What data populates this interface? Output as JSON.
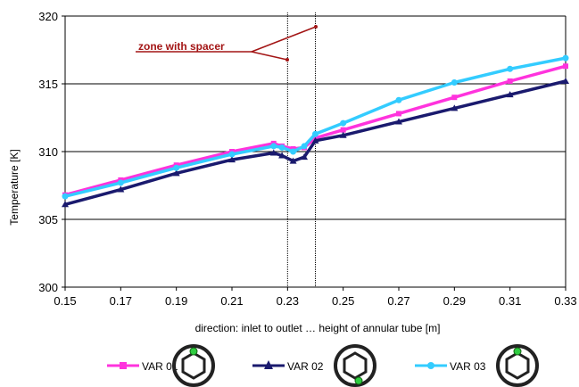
{
  "chart_data": {
    "type": "line",
    "title": "",
    "xlabel": "direction: inlet to outlet … height of annular tube [m]",
    "ylabel": "Temperature [K]",
    "xlim": [
      0.15,
      0.33
    ],
    "ylim": [
      300,
      320
    ],
    "x_ticks": [
      "0.15",
      "0.17",
      "0.19",
      "0.21",
      "0.23",
      "0.25",
      "0.27",
      "0.29",
      "0.31",
      "0.33"
    ],
    "y_ticks": [
      "300",
      "305",
      "310",
      "315",
      "320"
    ],
    "grid": "horizontal",
    "annotation": {
      "text": "zone with spacer",
      "color": "#a31515",
      "bounds_x": [
        0.23,
        0.24
      ]
    },
    "series": [
      {
        "name": "VAR 01",
        "color": "#ff33dd",
        "marker": "square",
        "x": [
          0.15,
          0.17,
          0.19,
          0.21,
          0.225,
          0.228,
          0.232,
          0.236,
          0.24,
          0.25,
          0.27,
          0.29,
          0.31,
          0.33
        ],
        "y": [
          306.8,
          307.9,
          309.0,
          310.0,
          310.6,
          310.4,
          310.2,
          310.3,
          311.0,
          311.6,
          312.8,
          314.0,
          315.2,
          316.3
        ]
      },
      {
        "name": "VAR 02",
        "color": "#1a1a6e",
        "marker": "triangle",
        "x": [
          0.15,
          0.17,
          0.19,
          0.21,
          0.225,
          0.228,
          0.232,
          0.236,
          0.24,
          0.25,
          0.27,
          0.29,
          0.31,
          0.33
        ],
        "y": [
          306.1,
          307.2,
          308.4,
          309.4,
          309.9,
          309.7,
          309.3,
          309.6,
          310.8,
          311.2,
          312.2,
          313.2,
          314.2,
          315.2
        ]
      },
      {
        "name": "VAR 03",
        "color": "#33ccff",
        "marker": "circle",
        "x": [
          0.15,
          0.17,
          0.19,
          0.21,
          0.225,
          0.228,
          0.232,
          0.236,
          0.24,
          0.25,
          0.27,
          0.29,
          0.31,
          0.33
        ],
        "y": [
          306.7,
          307.7,
          308.8,
          309.8,
          310.4,
          310.3,
          310.0,
          310.4,
          311.3,
          312.1,
          313.8,
          315.1,
          316.1,
          316.9
        ]
      }
    ]
  },
  "legend": {
    "items": [
      {
        "label": "VAR 01",
        "icon": "tube-cross-section-icon"
      },
      {
        "label": "VAR 02",
        "icon": "tube-cross-section-icon"
      },
      {
        "label": "VAR 03",
        "icon": "tube-cross-section-icon"
      }
    ]
  }
}
